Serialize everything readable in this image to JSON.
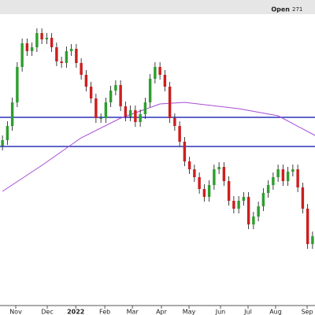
{
  "chart_data": {
    "type": "candlestick",
    "header_label": "Open",
    "header_value": 271,
    "x": [
      0,
      1,
      2,
      3,
      4,
      5,
      6,
      7,
      8,
      9,
      10,
      11,
      12,
      13,
      14,
      15,
      16,
      17,
      18,
      19,
      20,
      21,
      22,
      23,
      24,
      25,
      26,
      27,
      28,
      29,
      30,
      31,
      32,
      33,
      34,
      35,
      36,
      37,
      38,
      39,
      40,
      41,
      42,
      43,
      44,
      45,
      46,
      47,
      48,
      49,
      50,
      51,
      52,
      53,
      54,
      55,
      56,
      57,
      58,
      59,
      60,
      61,
      62,
      63
    ],
    "open": [
      203,
      210,
      228,
      258,
      303,
      333,
      323,
      328,
      346,
      338,
      340,
      328,
      310,
      308,
      323,
      326,
      308,
      293,
      278,
      263,
      238,
      238,
      258,
      273,
      280,
      253,
      240,
      248,
      233,
      243,
      258,
      288,
      303,
      293,
      278,
      238,
      228,
      208,
      183,
      173,
      163,
      148,
      138,
      153,
      173,
      176,
      158,
      133,
      123,
      133,
      138,
      103,
      113,
      126,
      143,
      153,
      163,
      173,
      158,
      170,
      173,
      150,
      123,
      78
    ],
    "high": [
      216,
      234,
      264,
      309,
      339,
      339,
      334,
      352,
      352,
      346,
      346,
      334,
      316,
      329,
      332,
      332,
      314,
      299,
      284,
      269,
      244,
      264,
      279,
      286,
      286,
      259,
      254,
      254,
      249,
      264,
      294,
      309,
      309,
      299,
      284,
      244,
      234,
      214,
      189,
      179,
      169,
      154,
      159,
      179,
      182,
      182,
      164,
      139,
      139,
      144,
      144,
      119,
      132,
      149,
      159,
      169,
      179,
      179,
      176,
      179,
      179,
      156,
      129,
      94
    ],
    "low": [
      197,
      204,
      222,
      252,
      297,
      317,
      317,
      322,
      332,
      332,
      322,
      304,
      302,
      302,
      317,
      302,
      287,
      272,
      257,
      232,
      232,
      232,
      252,
      267,
      247,
      234,
      234,
      227,
      227,
      237,
      252,
      282,
      287,
      272,
      232,
      222,
      202,
      177,
      167,
      157,
      142,
      132,
      132,
      147,
      167,
      152,
      127,
      117,
      117,
      127,
      97,
      97,
      107,
      120,
      137,
      147,
      157,
      152,
      152,
      164,
      144,
      117,
      72,
      72
    ],
    "close": [
      210,
      228,
      258,
      303,
      333,
      323,
      328,
      346,
      338,
      340,
      328,
      310,
      308,
      323,
      326,
      308,
      293,
      278,
      263,
      238,
      238,
      258,
      273,
      280,
      253,
      240,
      248,
      233,
      243,
      258,
      288,
      303,
      293,
      278,
      238,
      228,
      208,
      183,
      173,
      163,
      148,
      138,
      153,
      173,
      176,
      158,
      133,
      123,
      133,
      138,
      103,
      113,
      126,
      143,
      153,
      163,
      173,
      158,
      170,
      173,
      150,
      123,
      78,
      88
    ],
    "up_color": "#2e9e2e",
    "down_color": "#cc1f1f",
    "ma": {
      "x": [
        0,
        8,
        16,
        24,
        32,
        37,
        48,
        56,
        63.5
      ],
      "values": [
        145,
        178,
        213,
        238,
        256,
        258,
        250,
        241,
        216
      ],
      "color": "#a64dd6"
    },
    "hlines": [
      239,
      202
    ],
    "hline_color": "#2a35b8",
    "xlim": [
      -0.5,
      63.5
    ],
    "ylim": [
      0,
      378
    ],
    "xticks": [
      {
        "value": 2.7,
        "label": "Nov"
      },
      {
        "value": 9.1,
        "label": "Dec"
      },
      {
        "value": 14.9,
        "label": "2022"
      },
      {
        "value": 20.8,
        "label": "Feb"
      },
      {
        "value": 26.4,
        "label": "Mar"
      },
      {
        "value": 32.3,
        "label": "Apr"
      },
      {
        "value": 37.9,
        "label": "May"
      },
      {
        "value": 44.3,
        "label": "Jun"
      },
      {
        "value": 49.9,
        "label": "Jul"
      },
      {
        "value": 55.5,
        "label": "Aug"
      },
      {
        "value": 61.9,
        "label": "Sep"
      }
    ]
  }
}
